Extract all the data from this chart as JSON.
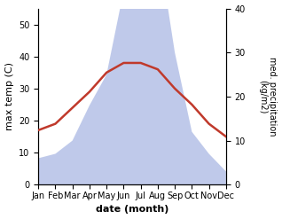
{
  "months": [
    "Jan",
    "Feb",
    "Mar",
    "Apr",
    "May",
    "Jun",
    "Jul",
    "Aug",
    "Sep",
    "Oct",
    "Nov",
    "Dec"
  ],
  "temperature": [
    17,
    19,
    24,
    29,
    35,
    38,
    38,
    36,
    30,
    25,
    19,
    15
  ],
  "precipitation": [
    6,
    7,
    10,
    18,
    25,
    44,
    75,
    55,
    30,
    12,
    7,
    3
  ],
  "temp_color": "#c0392b",
  "precip_fill_color": "#b8c4e8",
  "left_ylabel": "max temp (C)",
  "right_ylabel": "med. precipitation\n(kg/m2)",
  "xlabel": "date (month)",
  "ylim_left": [
    0,
    55
  ],
  "ylim_right": [
    0,
    40
  ],
  "left_yticks": [
    0,
    10,
    20,
    30,
    40,
    50
  ],
  "right_yticks": [
    0,
    10,
    20,
    30,
    40
  ],
  "temp_linewidth": 1.8,
  "label_fontsize": 8,
  "tick_fontsize": 7
}
